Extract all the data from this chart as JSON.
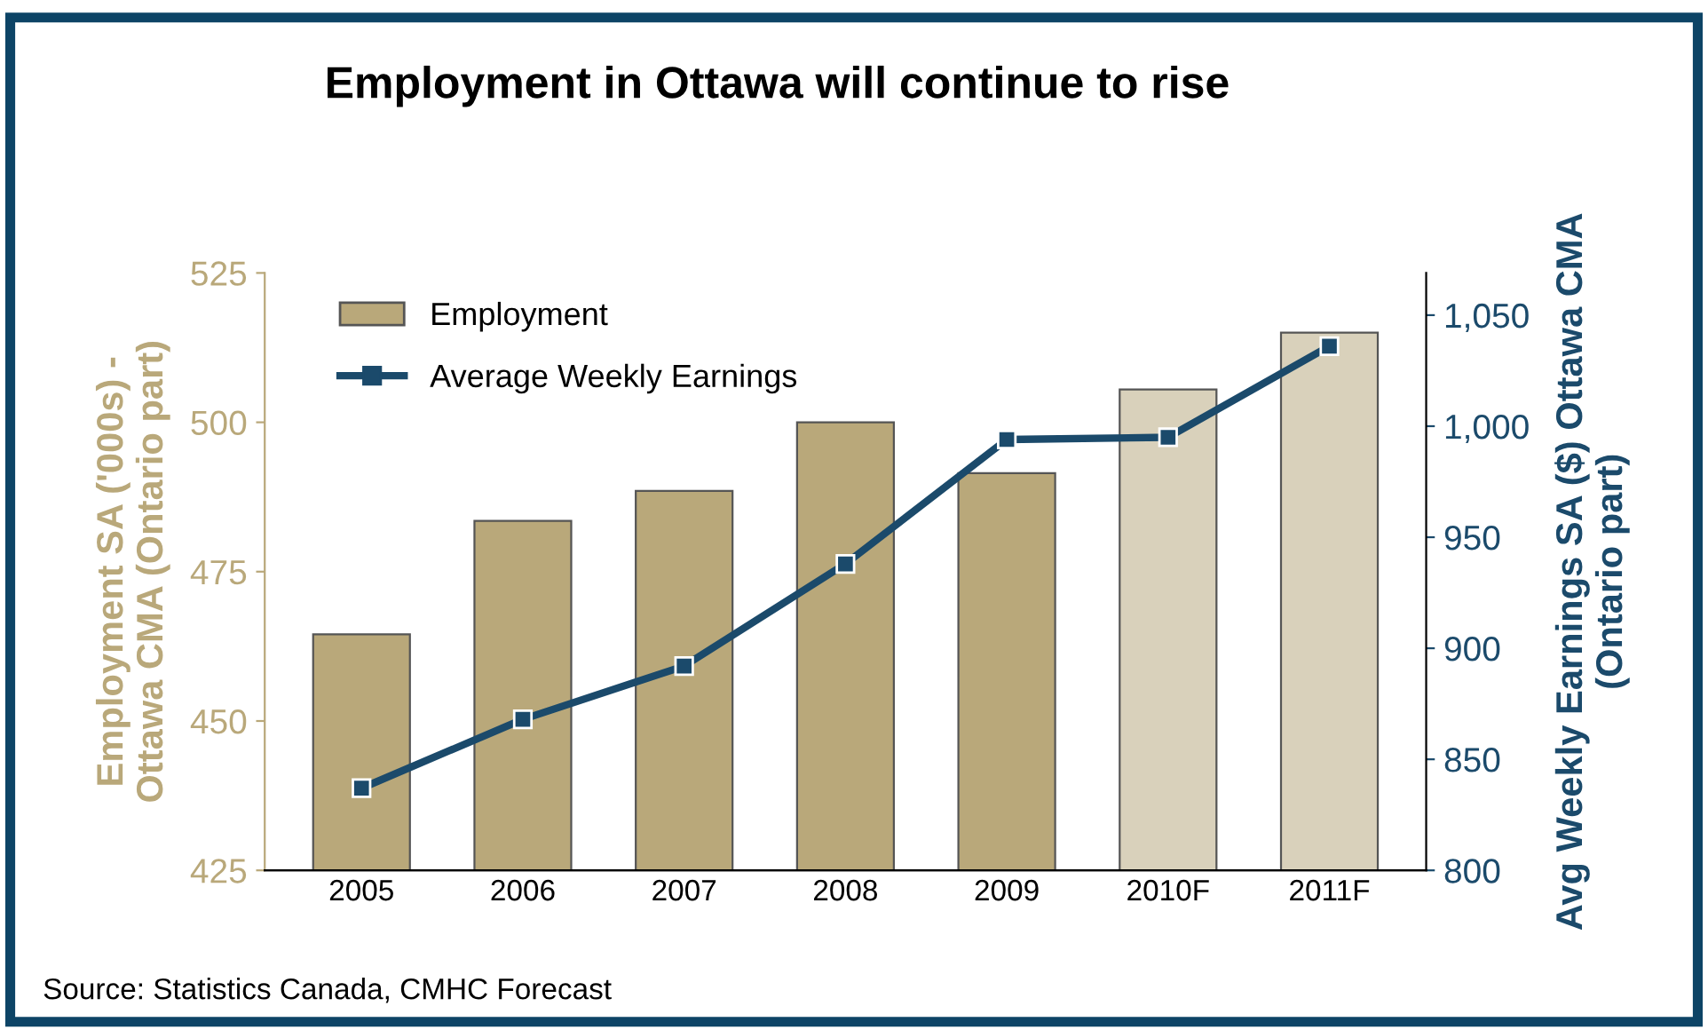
{
  "chart_data": {
    "type": "bar",
    "title": "Employment in Ottawa will continue to rise",
    "categories": [
      "2005",
      "2006",
      "2007",
      "2008",
      "2009",
      "2010F",
      "2011F"
    ],
    "series": [
      {
        "name": "Employment",
        "color": "#b9a87a",
        "colors": [
          "#b9a87a",
          "#b9a87a",
          "#b9a87a",
          "#b9a87a",
          "#b9a87a",
          "#d9d1bb",
          "#d9d1bb"
        ],
        "values": [
          464.5,
          483.5,
          488.5,
          500,
          491.5,
          505.5,
          515
        ]
      },
      {
        "name": "Average Weekly Earnings",
        "type": "line",
        "axis": "y2",
        "color": "#1b4a6b",
        "marker": "square",
        "values": [
          837,
          868,
          892,
          938,
          994,
          995,
          1036
        ]
      }
    ],
    "ylabel": "Employment SA ('000s) -\nOttawa CMA (Ontario part)",
    "y2label": "Avg Weekly Earnings SA ($) Ottawa CMA\n(Ontario part)",
    "ylim": [
      425,
      525
    ],
    "yticks": [
      425,
      450,
      475,
      500,
      525
    ],
    "y2lim": [
      800,
      1069
    ],
    "y2ticks": [
      800,
      850,
      900,
      950,
      {
        "value": 1000,
        "label": "1,000"
      },
      {
        "value": 1050,
        "label": "1,050"
      }
    ],
    "legend": "top left",
    "grid": false,
    "annotations": [
      "Source: Statistics Canada, CMHC Forecast"
    ]
  }
}
